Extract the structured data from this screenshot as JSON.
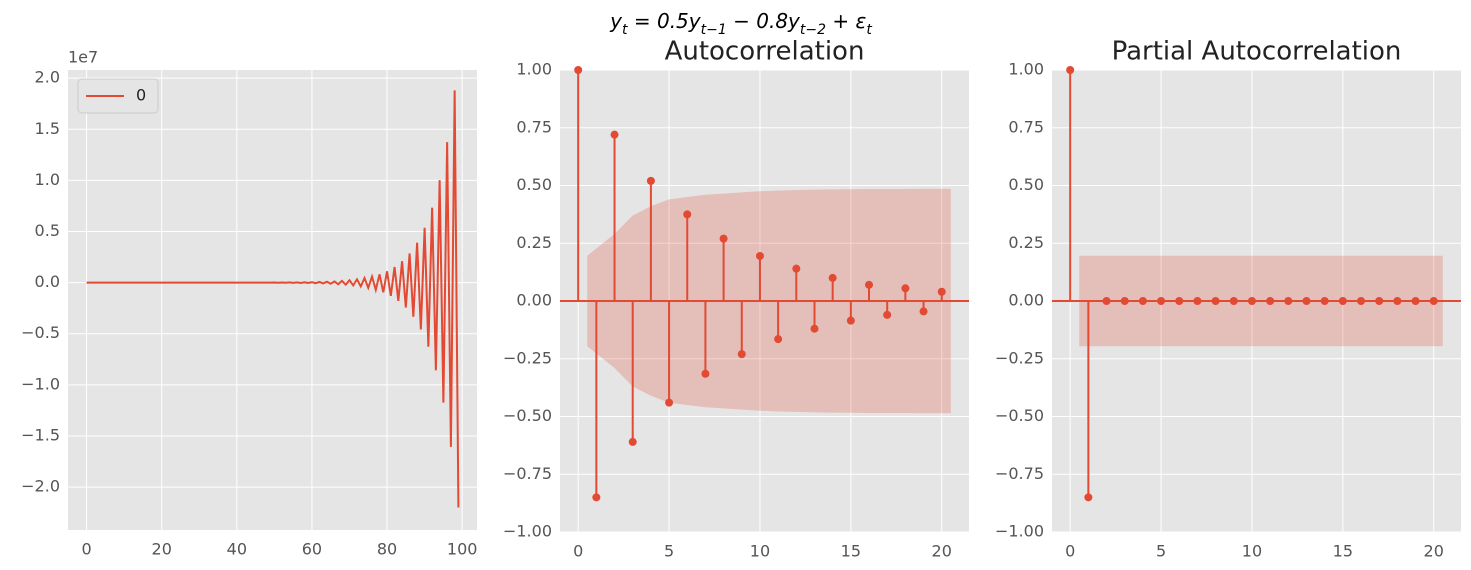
{
  "suptitle": "y_t = 0.5y_{t−1} − 0.8y_{t−2} + ε_t",
  "chart_data": [
    {
      "type": "line",
      "offset_label": "1e7",
      "legend": "upper left",
      "grid": true,
      "x": [
        0,
        1,
        2,
        3,
        4,
        5,
        6,
        7,
        8,
        9,
        10,
        11,
        12,
        13,
        14,
        15,
        16,
        17,
        18,
        19,
        20,
        21,
        22,
        23,
        24,
        25,
        26,
        27,
        28,
        29,
        30,
        31,
        32,
        33,
        34,
        35,
        36,
        37,
        38,
        39,
        40,
        41,
        42,
        43,
        44,
        45,
        46,
        47,
        48,
        49,
        50,
        51,
        52,
        53,
        54,
        55,
        56,
        57,
        58,
        59,
        60,
        61,
        62,
        63,
        64,
        65,
        66,
        67,
        68,
        69,
        70,
        71,
        72,
        73,
        74,
        75,
        76,
        77,
        78,
        79,
        80,
        81,
        82,
        83,
        84,
        85,
        86,
        87,
        88,
        89,
        90,
        91,
        92,
        93,
        94,
        95,
        96,
        97,
        98,
        99
      ],
      "series": [
        {
          "name": "0",
          "color": "#E24A33",
          "values": [
            0,
            0,
            0,
            0,
            0,
            0,
            0,
            0,
            0,
            0,
            0,
            0,
            0,
            0,
            0,
            0,
            0,
            0,
            0,
            0,
            0,
            0,
            0,
            0,
            0,
            0,
            0,
            0,
            0,
            0,
            0,
            0,
            0,
            0,
            0,
            0,
            0,
            0,
            0,
            0,
            0,
            0,
            0,
            0,
            0,
            0,
            0,
            0,
            0,
            0,
            0.001,
            -0.001,
            0.001,
            -0.001,
            0.002,
            -0.002,
            0.002,
            -0.003,
            0.003,
            -0.004,
            0.005,
            -0.006,
            0.007,
            -0.008,
            0.009,
            -0.011,
            0.012,
            -0.015,
            0.017,
            -0.02,
            0.023,
            -0.027,
            0.032,
            -0.037,
            0.044,
            -0.051,
            0.059,
            -0.07,
            0.081,
            -0.095,
            0.111,
            -0.13,
            0.153,
            -0.179,
            0.209,
            -0.244,
            0.286,
            -0.334,
            0.391,
            -0.458,
            0.536,
            -0.627,
            0.733,
            -0.858,
            1.003,
            -1.174,
            1.374,
            -1.607,
            1.88,
            -2.2
          ]
        }
      ],
      "xlim": [
        -4.95,
        103.95
      ],
      "xticks": [
        0,
        20,
        40,
        60,
        80,
        100
      ],
      "ylim": [
        -2.42,
        2.08
      ],
      "yticks": [
        {
          "value": -2,
          "label": "−2.0"
        },
        {
          "value": -1.5,
          "label": "−1.5"
        },
        {
          "value": -1,
          "label": "−1.0"
        },
        {
          "value": -0.5,
          "label": "−0.5"
        },
        {
          "value": 0,
          "label": "0.0"
        },
        {
          "value": 0.5,
          "label": "0.5"
        },
        {
          "value": 1,
          "label": "1.0"
        },
        {
          "value": 1.5,
          "label": "1.5"
        },
        {
          "value": 2,
          "label": "2.0"
        }
      ]
    },
    {
      "type": "stem",
      "title": "Autocorrelation",
      "color": "#E24A33",
      "grid": true,
      "x": [
        0,
        1,
        2,
        3,
        4,
        5,
        6,
        7,
        8,
        9,
        10,
        11,
        12,
        13,
        14,
        15,
        16,
        17,
        18,
        19,
        20
      ],
      "values": [
        1.0,
        -0.85,
        0.72,
        -0.61,
        0.52,
        -0.44,
        0.375,
        -0.315,
        0.27,
        -0.23,
        0.195,
        -0.165,
        0.14,
        -0.12,
        0.1,
        -0.085,
        0.07,
        -0.06,
        0.055,
        -0.045,
        0.04
      ],
      "band": {
        "x": [
          0.5,
          2,
          3,
          4,
          5,
          6,
          7,
          8,
          9,
          10,
          11,
          12,
          13,
          14,
          15,
          16,
          17,
          18,
          19,
          20.5
        ],
        "upper": [
          0.196,
          0.29,
          0.37,
          0.41,
          0.44,
          0.45,
          0.46,
          0.465,
          0.47,
          0.475,
          0.478,
          0.48,
          0.482,
          0.483,
          0.484,
          0.485,
          0.485,
          0.485,
          0.486,
          0.486
        ],
        "lower": [
          -0.196,
          -0.29,
          -0.37,
          -0.41,
          -0.44,
          -0.45,
          -0.46,
          -0.465,
          -0.47,
          -0.475,
          -0.478,
          -0.48,
          -0.482,
          -0.483,
          -0.484,
          -0.485,
          -0.485,
          -0.485,
          -0.486,
          -0.486
        ]
      },
      "xlim": [
        -1,
        21.5
      ],
      "xticks": [
        0,
        5,
        10,
        15,
        20
      ],
      "ylim": [
        -1,
        1
      ],
      "yticks": [
        {
          "value": -1,
          "label": "−1.00"
        },
        {
          "value": -0.75,
          "label": "−0.75"
        },
        {
          "value": -0.5,
          "label": "−0.50"
        },
        {
          "value": -0.25,
          "label": "−0.25"
        },
        {
          "value": 0,
          "label": "0.00"
        },
        {
          "value": 0.25,
          "label": "0.25"
        },
        {
          "value": 0.5,
          "label": "0.50"
        },
        {
          "value": 0.75,
          "label": "0.75"
        },
        {
          "value": 1,
          "label": "1.00"
        }
      ]
    },
    {
      "type": "stem",
      "title": "Partial Autocorrelation",
      "color": "#E24A33",
      "grid": true,
      "x": [
        0,
        1,
        2,
        3,
        4,
        5,
        6,
        7,
        8,
        9,
        10,
        11,
        12,
        13,
        14,
        15,
        16,
        17,
        18,
        19,
        20
      ],
      "values": [
        1.0,
        -0.85,
        0,
        0,
        0,
        0,
        0,
        0,
        0,
        0,
        0,
        0,
        0,
        0,
        0,
        0,
        0,
        0,
        0,
        0,
        0
      ],
      "band": {
        "x": [
          0.5,
          2,
          3,
          4,
          5,
          6,
          7,
          8,
          9,
          10,
          11,
          12,
          13,
          14,
          15,
          16,
          17,
          18,
          19,
          20.5
        ],
        "upper": [
          0.196,
          0.196,
          0.196,
          0.196,
          0.196,
          0.196,
          0.196,
          0.196,
          0.196,
          0.196,
          0.196,
          0.196,
          0.196,
          0.196,
          0.196,
          0.196,
          0.196,
          0.196,
          0.196,
          0.196
        ],
        "lower": [
          -0.196,
          -0.196,
          -0.196,
          -0.196,
          -0.196,
          -0.196,
          -0.196,
          -0.196,
          -0.196,
          -0.196,
          -0.196,
          -0.196,
          -0.196,
          -0.196,
          -0.196,
          -0.196,
          -0.196,
          -0.196,
          -0.196,
          -0.196
        ]
      },
      "xlim": [
        -1,
        21.5
      ],
      "xticks": [
        0,
        5,
        10,
        15,
        20
      ],
      "ylim": [
        -1,
        1
      ],
      "yticks": [
        {
          "value": -1,
          "label": "−1.00"
        },
        {
          "value": -0.75,
          "label": "−0.75"
        },
        {
          "value": -0.5,
          "label": "−0.50"
        },
        {
          "value": -0.25,
          "label": "−0.25"
        },
        {
          "value": 0,
          "label": "0.00"
        },
        {
          "value": 0.25,
          "label": "0.25"
        },
        {
          "value": 0.5,
          "label": "0.50"
        },
        {
          "value": 0.75,
          "label": "0.75"
        },
        {
          "value": 1,
          "label": "1.00"
        }
      ]
    }
  ]
}
